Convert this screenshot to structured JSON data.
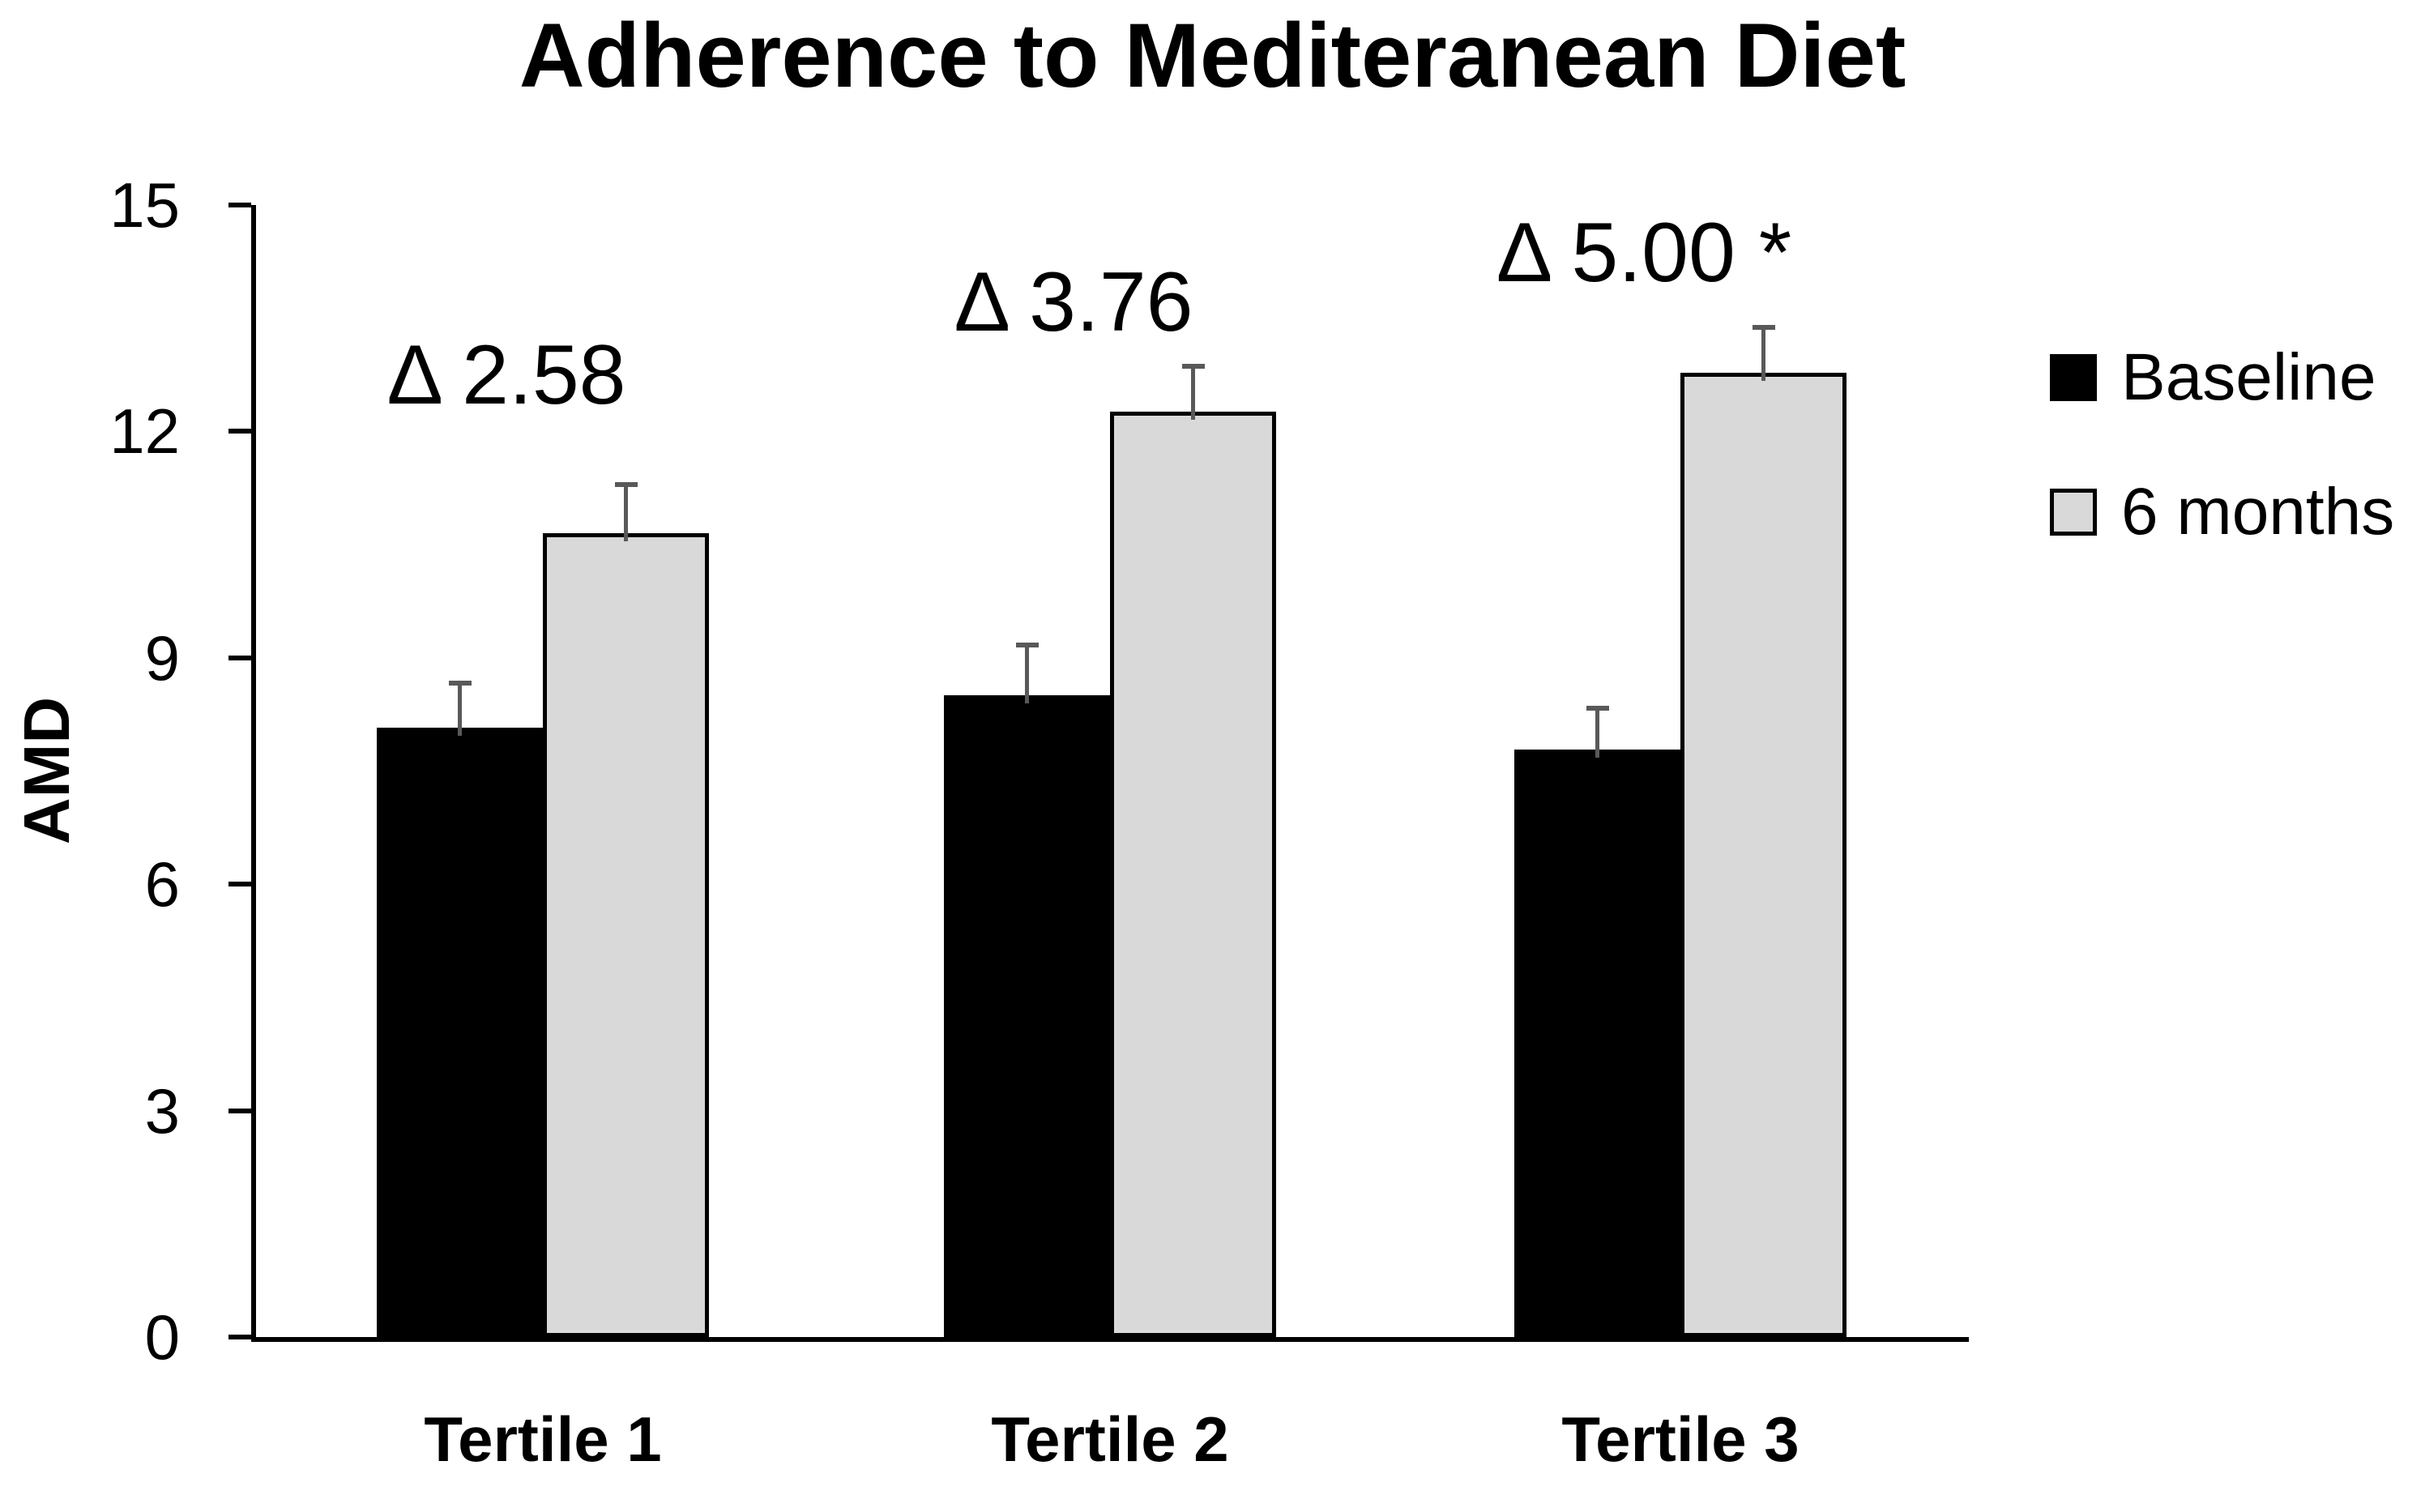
{
  "chart_data": {
    "type": "bar",
    "title": "Adherence to Mediteranean Diet",
    "ylabel": "AMD",
    "xlabel": "",
    "ylim": [
      0,
      15
    ],
    "yticks": [
      0,
      3,
      6,
      9,
      12,
      15
    ],
    "grid": false,
    "legend_position": "right",
    "categories": [
      "Tertile 1",
      "Tertile 2",
      "Tertile 3"
    ],
    "series": [
      {
        "name": "Baseline",
        "color": "#000000",
        "values": [
          8.07,
          8.5,
          7.78
        ],
        "errors_plus": [
          0.6,
          0.67,
          0.55
        ]
      },
      {
        "name": "6 months",
        "color": "#d9d9d9",
        "values": [
          10.65,
          12.26,
          12.78
        ],
        "errors_plus": [
          0.65,
          0.6,
          0.6
        ]
      }
    ],
    "error_bar_color": "#595959",
    "axis_color": "#000000",
    "annotations": [
      {
        "text": "Δ 2.58",
        "category_index": 0,
        "y": 12.75
      },
      {
        "text": "Δ 3.76",
        "category_index": 1,
        "y": 13.71
      },
      {
        "text": "Δ 5.00 *",
        "category_index": 2,
        "y": 14.37
      }
    ]
  }
}
